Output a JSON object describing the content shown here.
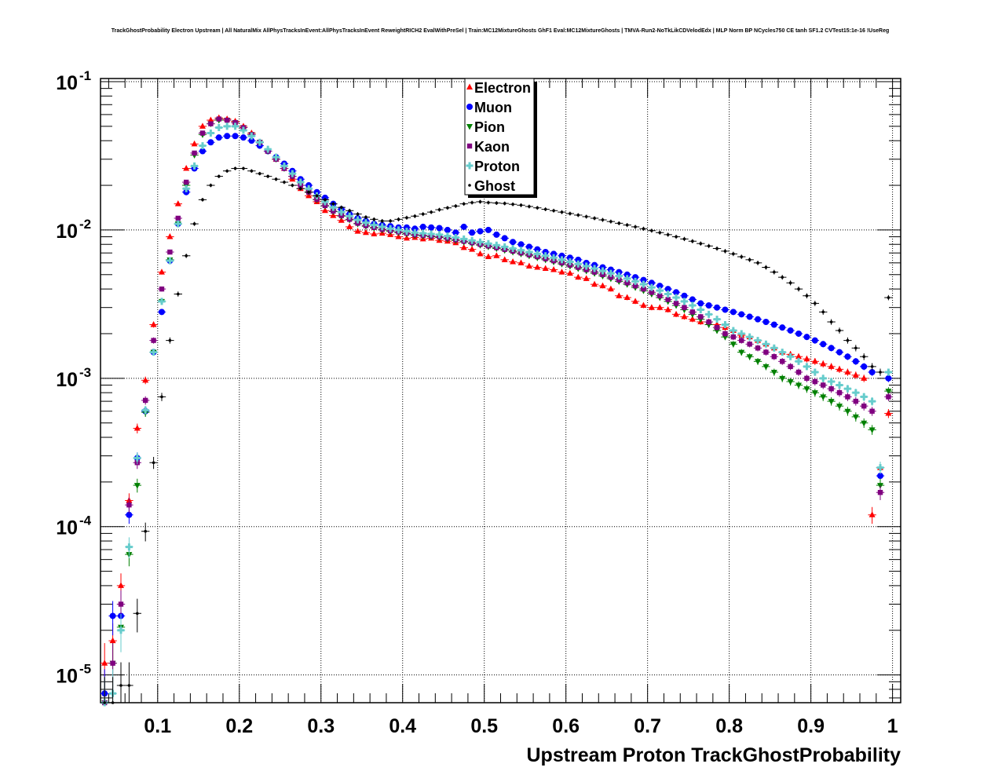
{
  "title": "TrackGhostProbability Electron Upstream | All NaturalMix AllPhysTracksInEvent:AllPhysTracksInEvent ReweightRICH2 EvalWithPreSel | Train:MC12MixtureGhosts GhF1 Eval:MC12MixtureGhosts | TMVA-Run2-NoTkLikCDVelodEdx | MLP Norm BP NCycles750 CE tanh SF1.2 CVTest15:1e-16 !UseReg",
  "chart_data": {
    "type": "scatter",
    "title": "TrackGhostProbability Electron Upstream | All NaturalMix AllPhysTracksInEvent:AllPhysTracksInEvent ReweightRICH2 EvalWithPreSel | Train:MC12MixtureGhosts GhF1 Eval:MC12MixtureGhosts | TMVA-Run2-NoTkLikCDVelodEdx | MLP Norm BP NCycles750 CE tanh SF1.2 CVTest15:1e-16 !UseReg",
    "xlabel": "Upstream Proton TrackGhostProbability",
    "ylabel": "",
    "xlim": [
      0.03,
      1.01
    ],
    "ylim": [
      6.5e-06,
      0.105
    ],
    "yscale": "log",
    "grid": true,
    "legend_position": "top-center",
    "x_ticks": [
      "0.1",
      "0.2",
      "0.3",
      "0.4",
      "0.5",
      "0.6",
      "0.7",
      "0.8",
      "0.9",
      "1"
    ],
    "y_ticks": [
      {
        "base": "10",
        "exp": "-5",
        "value": 1e-05
      },
      {
        "base": "10",
        "exp": "-4",
        "value": 0.0001
      },
      {
        "base": "10",
        "exp": "-3",
        "value": 0.001
      },
      {
        "base": "10",
        "exp": "-2",
        "value": 0.01
      },
      {
        "base": "10",
        "exp": "-1",
        "value": 0.1
      }
    ],
    "x": [
      0.035,
      0.045,
      0.055,
      0.065,
      0.075,
      0.085,
      0.095,
      0.105,
      0.115,
      0.125,
      0.135,
      0.145,
      0.155,
      0.165,
      0.175,
      0.185,
      0.195,
      0.205,
      0.215,
      0.225,
      0.235,
      0.245,
      0.255,
      0.265,
      0.275,
      0.285,
      0.295,
      0.305,
      0.315,
      0.325,
      0.335,
      0.345,
      0.355,
      0.365,
      0.375,
      0.385,
      0.395,
      0.405,
      0.415,
      0.425,
      0.435,
      0.445,
      0.455,
      0.465,
      0.475,
      0.485,
      0.495,
      0.505,
      0.515,
      0.525,
      0.535,
      0.545,
      0.555,
      0.565,
      0.575,
      0.585,
      0.595,
      0.605,
      0.615,
      0.625,
      0.635,
      0.645,
      0.655,
      0.665,
      0.675,
      0.685,
      0.695,
      0.705,
      0.715,
      0.725,
      0.735,
      0.745,
      0.755,
      0.765,
      0.775,
      0.785,
      0.795,
      0.805,
      0.815,
      0.825,
      0.835,
      0.845,
      0.855,
      0.865,
      0.875,
      0.885,
      0.895,
      0.905,
      0.915,
      0.925,
      0.935,
      0.945,
      0.955,
      0.965,
      0.975,
      0.985,
      0.995
    ],
    "series": [
      {
        "name": "Electron",
        "color": "#ff0000",
        "marker": "triangle-up",
        "values": [
          1.2e-05,
          1.7e-05,
          4e-05,
          0.00015,
          0.00046,
          0.00097,
          0.0023,
          0.0052,
          0.009,
          0.015,
          0.026,
          0.038,
          0.05,
          0.055,
          0.057,
          0.056,
          0.054,
          0.05,
          0.045,
          0.039,
          0.034,
          0.03,
          0.026,
          0.022,
          0.019,
          0.017,
          0.0155,
          0.0135,
          0.0125,
          0.0116,
          0.0105,
          0.0098,
          0.0096,
          0.0094,
          0.0095,
          0.0093,
          0.009,
          0.0088,
          0.0089,
          0.0087,
          0.0088,
          0.0085,
          0.0084,
          0.0082,
          0.0076,
          0.0074,
          0.0069,
          0.0066,
          0.0067,
          0.0063,
          0.0061,
          0.006,
          0.0057,
          0.0056,
          0.0055,
          0.0054,
          0.0052,
          0.0051,
          0.0048,
          0.0047,
          0.0043,
          0.0042,
          0.004,
          0.0036,
          0.0035,
          0.0033,
          0.0031,
          0.003,
          0.003,
          0.0029,
          0.0027,
          0.0026,
          0.0025,
          0.0024,
          0.0024,
          0.0023,
          0.0022,
          0.0021,
          0.00195,
          0.0019,
          0.0018,
          0.0017,
          0.0016,
          0.0015,
          0.00145,
          0.0014,
          0.00135,
          0.0013,
          0.00125,
          0.0012,
          0.00115,
          0.0011,
          0.00105,
          0.001,
          0.00012,
          0.00025,
          0.00058
        ]
      },
      {
        "name": "Muon",
        "color": "#0000ff",
        "marker": "circle",
        "values": [
          7.5e-06,
          2.5e-05,
          2.5e-05,
          0.00012,
          0.00029,
          0.0006,
          0.0015,
          0.0028,
          0.0062,
          0.011,
          0.018,
          0.026,
          0.034,
          0.039,
          0.042,
          0.043,
          0.043,
          0.042,
          0.04,
          0.037,
          0.034,
          0.031,
          0.028,
          0.025,
          0.022,
          0.02,
          0.018,
          0.0165,
          0.015,
          0.0138,
          0.0128,
          0.012,
          0.0115,
          0.011,
          0.0108,
          0.0106,
          0.0104,
          0.0104,
          0.0102,
          0.0105,
          0.0104,
          0.0103,
          0.01,
          0.0096,
          0.0105,
          0.0096,
          0.0098,
          0.01,
          0.0093,
          0.0088,
          0.0083,
          0.008,
          0.0077,
          0.0074,
          0.0071,
          0.0069,
          0.0067,
          0.0065,
          0.0063,
          0.006,
          0.0058,
          0.0056,
          0.0054,
          0.0052,
          0.005,
          0.0048,
          0.0046,
          0.0044,
          0.0042,
          0.004,
          0.0038,
          0.0036,
          0.0034,
          0.0032,
          0.0031,
          0.003,
          0.0029,
          0.0028,
          0.0027,
          0.0026,
          0.0025,
          0.0024,
          0.0023,
          0.0022,
          0.0021,
          0.002,
          0.0019,
          0.0018,
          0.0017,
          0.0016,
          0.0015,
          0.0014,
          0.0013,
          0.0012,
          0.0011,
          0.00022,
          0.001
        ]
      },
      {
        "name": "Pion",
        "color": "#008000",
        "marker": "triangle-down",
        "values": [
          6.5e-06,
          1.2e-05,
          2.1e-05,
          6.5e-05,
          0.00019,
          0.00059,
          0.0015,
          0.0033,
          0.0063,
          0.011,
          0.02,
          0.032,
          0.044,
          0.052,
          0.055,
          0.055,
          0.053,
          0.049,
          0.044,
          0.039,
          0.034,
          0.03,
          0.026,
          0.023,
          0.02,
          0.018,
          0.016,
          0.0145,
          0.0133,
          0.0124,
          0.0117,
          0.011,
          0.0106,
          0.0103,
          0.01,
          0.0098,
          0.0096,
          0.0094,
          0.0092,
          0.0091,
          0.009,
          0.0089,
          0.0087,
          0.0085,
          0.0083,
          0.0081,
          0.0079,
          0.0077,
          0.0075,
          0.0073,
          0.0071,
          0.0069,
          0.0067,
          0.0065,
          0.0063,
          0.0061,
          0.0059,
          0.0057,
          0.0055,
          0.0053,
          0.0051,
          0.0049,
          0.0047,
          0.0045,
          0.0043,
          0.0041,
          0.0039,
          0.0037,
          0.0035,
          0.0033,
          0.0031,
          0.0029,
          0.0027,
          0.0025,
          0.0023,
          0.0021,
          0.0019,
          0.0017,
          0.0015,
          0.0014,
          0.0013,
          0.0012,
          0.0011,
          0.001,
          0.00095,
          0.0009,
          0.00085,
          0.0008,
          0.00075,
          0.0007,
          0.00065,
          0.0006,
          0.00055,
          0.0005,
          0.00045,
          0.00019,
          0.00082
        ]
      },
      {
        "name": "Kaon",
        "color": "#800080",
        "marker": "square",
        "values": [
          6.5e-06,
          1.2e-05,
          3e-05,
          0.00014,
          0.00027,
          0.00071,
          0.0018,
          0.004,
          0.0071,
          0.012,
          0.021,
          0.033,
          0.045,
          0.052,
          0.056,
          0.055,
          0.053,
          0.049,
          0.044,
          0.039,
          0.034,
          0.03,
          0.026,
          0.023,
          0.02,
          0.018,
          0.0161,
          0.0146,
          0.0134,
          0.0125,
          0.0118,
          0.0111,
          0.0107,
          0.0104,
          0.0101,
          0.0099,
          0.0097,
          0.0095,
          0.0093,
          0.0092,
          0.0091,
          0.009,
          0.0088,
          0.0086,
          0.0084,
          0.0082,
          0.008,
          0.0078,
          0.0076,
          0.0074,
          0.0072,
          0.007,
          0.0068,
          0.0066,
          0.0064,
          0.0062,
          0.006,
          0.0058,
          0.0056,
          0.0054,
          0.0052,
          0.005,
          0.0048,
          0.0046,
          0.0044,
          0.0042,
          0.004,
          0.0038,
          0.0036,
          0.0034,
          0.0032,
          0.003,
          0.0028,
          0.0026,
          0.0024,
          0.0022,
          0.002,
          0.0019,
          0.0018,
          0.0017,
          0.0016,
          0.0015,
          0.0014,
          0.0013,
          0.0012,
          0.0011,
          0.001,
          0.00095,
          0.0009,
          0.00085,
          0.0008,
          0.00075,
          0.0007,
          0.00065,
          0.0006,
          0.00017,
          0.00075
        ]
      },
      {
        "name": "Proton",
        "color": "#66cccc",
        "marker": "cross",
        "values": [
          6.5e-06,
          7.5e-06,
          2e-05,
          7.3e-05,
          0.00029,
          0.00061,
          0.0015,
          0.0033,
          0.0062,
          0.011,
          0.019,
          0.027,
          0.037,
          0.045,
          0.049,
          0.05,
          0.05,
          0.047,
          0.043,
          0.039,
          0.035,
          0.031,
          0.027,
          0.024,
          0.021,
          0.019,
          0.017,
          0.0155,
          0.0142,
          0.0132,
          0.0124,
          0.0117,
          0.0112,
          0.0108,
          0.0105,
          0.0102,
          0.01,
          0.0098,
          0.0096,
          0.0095,
          0.0094,
          0.0093,
          0.0091,
          0.0089,
          0.0087,
          0.0085,
          0.0083,
          0.0081,
          0.0079,
          0.0077,
          0.0075,
          0.0073,
          0.0071,
          0.0069,
          0.0067,
          0.0065,
          0.0063,
          0.0061,
          0.0059,
          0.0057,
          0.0055,
          0.0053,
          0.0051,
          0.0049,
          0.0047,
          0.0045,
          0.0043,
          0.0041,
          0.0039,
          0.0037,
          0.0035,
          0.0033,
          0.0031,
          0.0029,
          0.0027,
          0.0025,
          0.0023,
          0.0021,
          0.002,
          0.0019,
          0.0018,
          0.0017,
          0.0016,
          0.0015,
          0.0014,
          0.0013,
          0.0012,
          0.0011,
          0.001,
          0.00095,
          0.0009,
          0.00085,
          0.0008,
          0.00075,
          0.0007,
          0.00025,
          0.0011
        ]
      },
      {
        "name": "Ghost",
        "color": "#000000",
        "marker": "dot",
        "values": [
          6.5e-06,
          6.5e-06,
          8.5e-06,
          8.5e-06,
          2.6e-05,
          9.3e-05,
          0.00027,
          0.00075,
          0.0018,
          0.0037,
          0.0067,
          0.011,
          0.016,
          0.02,
          0.023,
          0.025,
          0.026,
          0.026,
          0.025,
          0.024,
          0.023,
          0.022,
          0.021,
          0.02,
          0.019,
          0.018,
          0.017,
          0.016,
          0.015,
          0.0142,
          0.0135,
          0.0128,
          0.0122,
          0.0118,
          0.0115,
          0.0115,
          0.0118,
          0.0121,
          0.0124,
          0.0128,
          0.0132,
          0.0137,
          0.0141,
          0.0145,
          0.015,
          0.0153,
          0.0155,
          0.0153,
          0.0152,
          0.0151,
          0.0149,
          0.0147,
          0.0144,
          0.0141,
          0.0138,
          0.0135,
          0.0132,
          0.0129,
          0.0126,
          0.0123,
          0.012,
          0.0117,
          0.0114,
          0.0111,
          0.0108,
          0.0105,
          0.0102,
          0.0099,
          0.0096,
          0.0093,
          0.009,
          0.0087,
          0.0084,
          0.0081,
          0.0078,
          0.0075,
          0.0072,
          0.0069,
          0.0066,
          0.0063,
          0.006,
          0.0056,
          0.0052,
          0.0048,
          0.0044,
          0.004,
          0.0036,
          0.0032,
          0.0028,
          0.0024,
          0.0021,
          0.0018,
          0.0016,
          0.0014,
          0.0012,
          0.0011,
          0.0035
        ]
      }
    ]
  }
}
